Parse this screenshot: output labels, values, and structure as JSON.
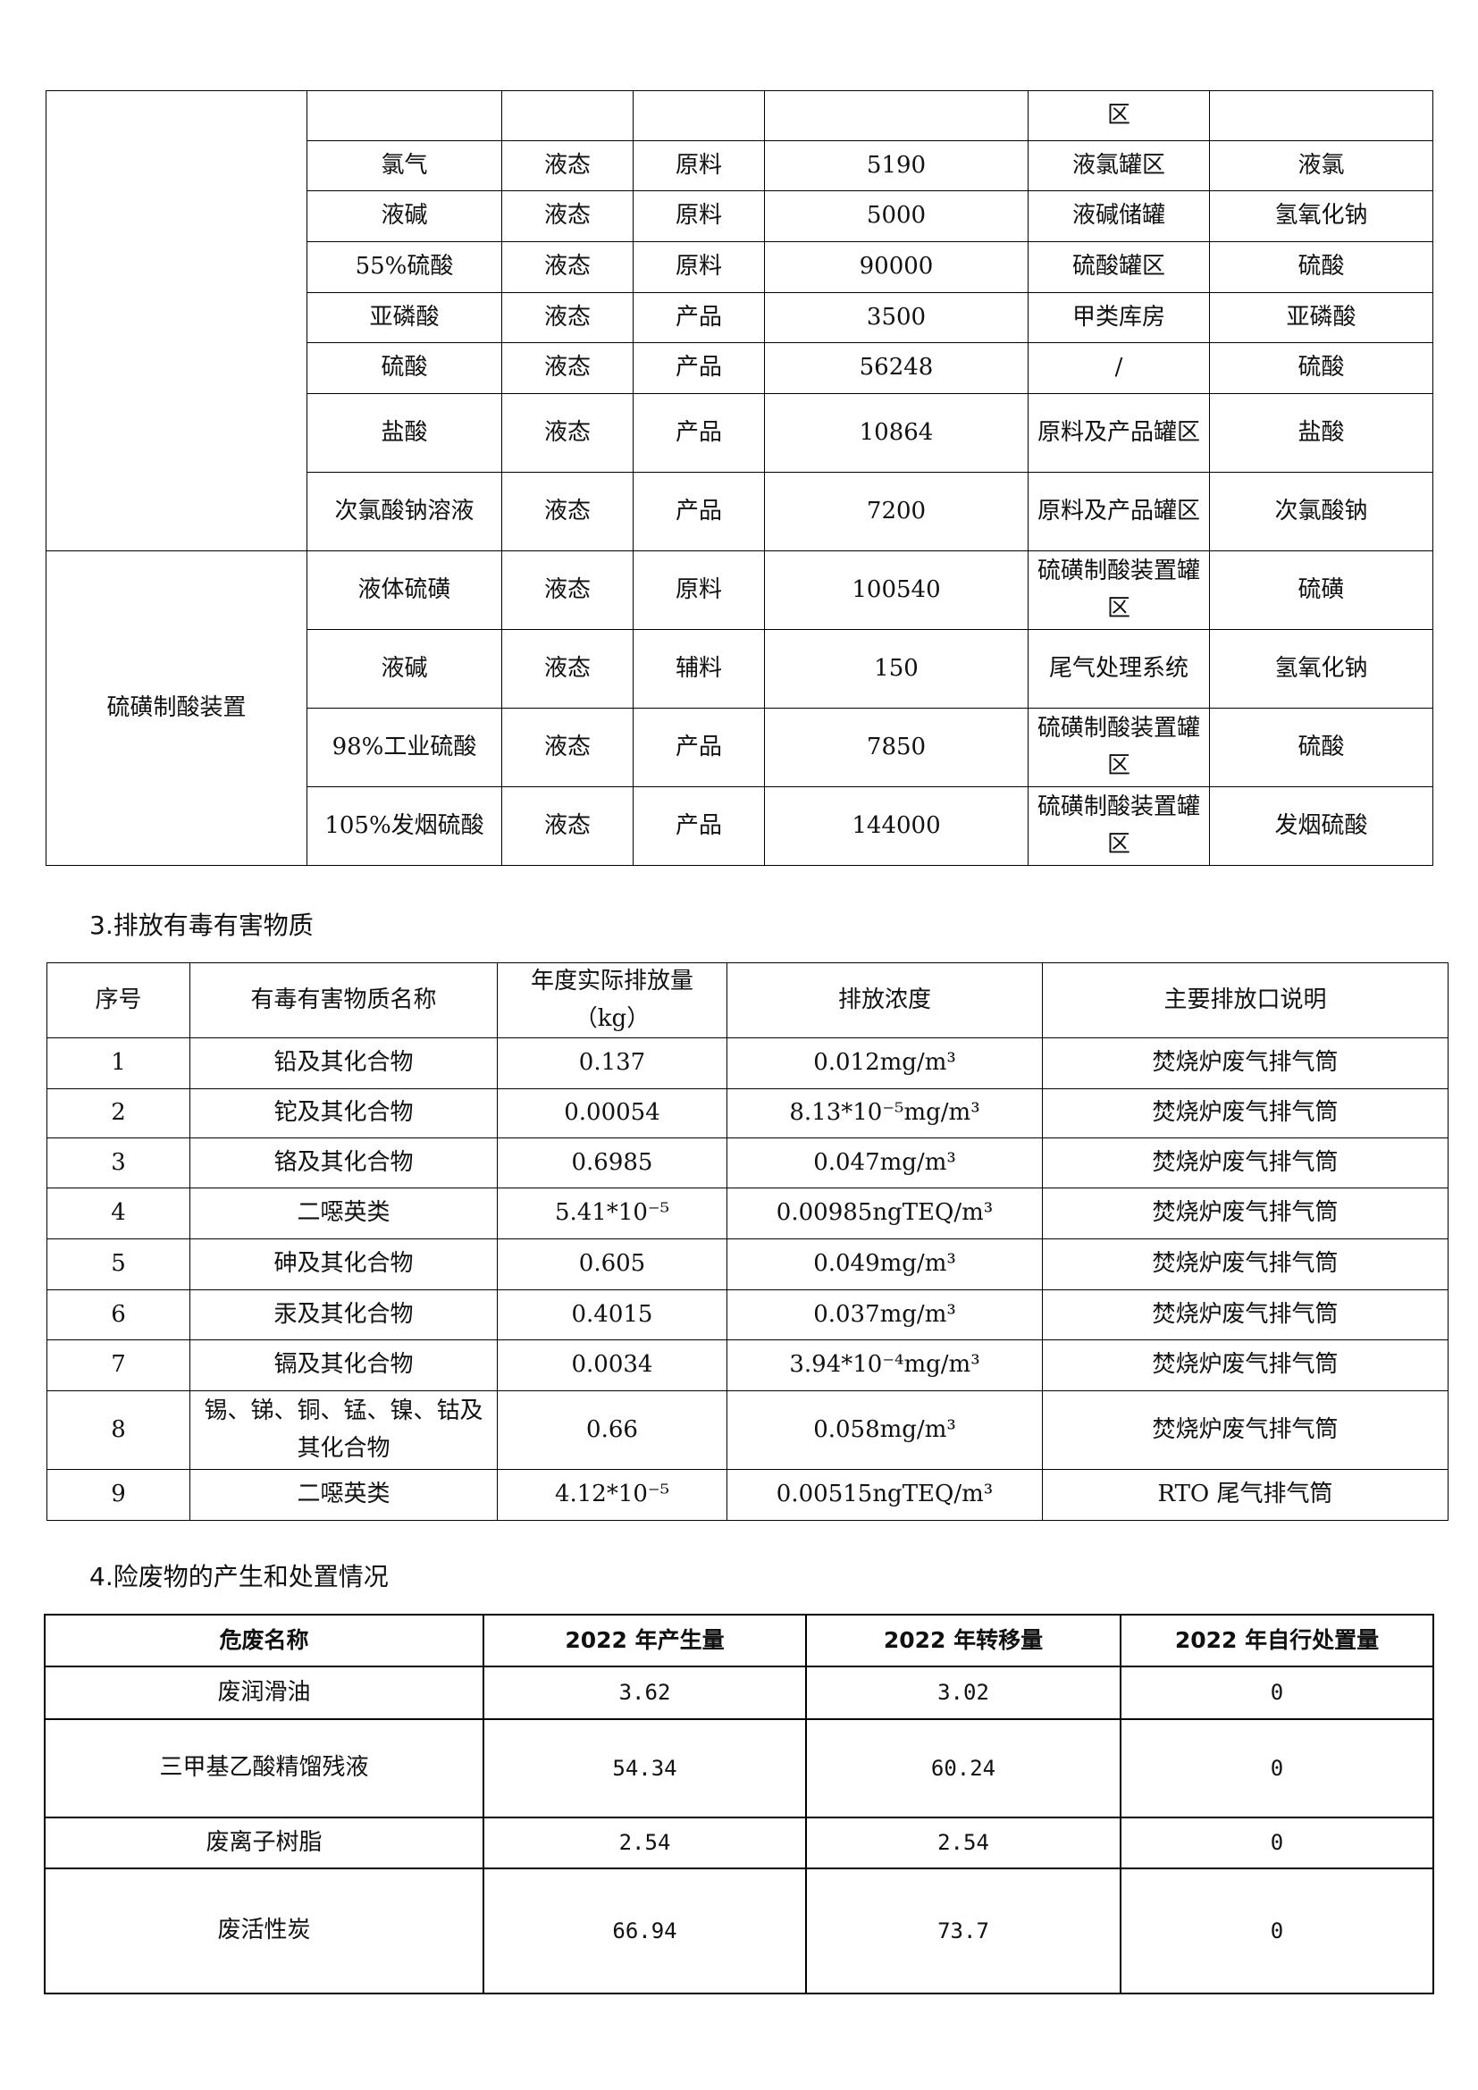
{
  "table1": {
    "groups": [
      {
        "name": "",
        "rows": 8
      },
      {
        "name": "硫磺制酸装置",
        "rows": 4
      }
    ],
    "rows": [
      [
        "",
        "",
        "",
        "",
        "区",
        ""
      ],
      [
        "氯气",
        "液态",
        "原料",
        "5190",
        "液氯罐区",
        "液氯"
      ],
      [
        "液碱",
        "液态",
        "原料",
        "5000",
        "液碱储罐",
        "氢氧化钠"
      ],
      [
        "55%硫酸",
        "液态",
        "原料",
        "90000",
        "硫酸罐区",
        "硫酸"
      ],
      [
        "亚磷酸",
        "液态",
        "产品",
        "3500",
        "甲类库房",
        "亚磷酸"
      ],
      [
        "硫酸",
        "液态",
        "产品",
        "56248",
        "/",
        "硫酸"
      ],
      [
        "盐酸",
        "液态",
        "产品",
        "10864",
        "原料及产品罐区",
        "盐酸"
      ],
      [
        "次氯酸钠溶液",
        "液态",
        "产品",
        "7200",
        "原料及产品罐区",
        "次氯酸钠"
      ],
      [
        "液体硫磺",
        "液态",
        "原料",
        "100540",
        "硫磺制酸装置罐区",
        "硫磺"
      ],
      [
        "液碱",
        "液态",
        "辅料",
        "150",
        "尾气处理系统",
        "氢氧化钠"
      ],
      [
        "98%工业硫酸",
        "液态",
        "产品",
        "7850",
        "硫磺制酸装置罐区",
        "硫酸"
      ],
      [
        "105%发烟硫酸",
        "液态",
        "产品",
        "144000",
        "硫磺制酸装置罐区",
        "发烟硫酸"
      ]
    ]
  },
  "section3": {
    "title": "3.排放有毒有害物质",
    "headers": [
      "序号",
      "有毒有害物质名称",
      "年度实际排放量（kg）",
      "排放浓度",
      "主要排放口说明"
    ],
    "rows": [
      [
        "1",
        "铅及其化合物",
        "0.137",
        "0.012mg/m³",
        "焚烧炉废气排气筒"
      ],
      [
        "2",
        "铊及其化合物",
        "0.00054",
        "8.13*10⁻⁵mg/m³",
        "焚烧炉废气排气筒"
      ],
      [
        "3",
        "铬及其化合物",
        "0.6985",
        "0.047mg/m³",
        "焚烧炉废气排气筒"
      ],
      [
        "4",
        "二噁英类",
        "5.41*10⁻⁵",
        "0.00985ngTEQ/m³",
        "焚烧炉废气排气筒"
      ],
      [
        "5",
        "砷及其化合物",
        "0.605",
        "0.049mg/m³",
        "焚烧炉废气排气筒"
      ],
      [
        "6",
        "汞及其化合物",
        "0.4015",
        "0.037mg/m³",
        "焚烧炉废气排气筒"
      ],
      [
        "7",
        "镉及其化合物",
        "0.0034",
        "3.94*10⁻⁴mg/m³",
        "焚烧炉废气排气筒"
      ],
      [
        "8",
        "锡、锑、铜、锰、镍、钴及其化合物",
        "0.66",
        "0.058mg/m³",
        "焚烧炉废气排气筒"
      ],
      [
        "9",
        "二噁英类",
        "4.12*10⁻⁵",
        "0.00515ngTEQ/m³",
        "RTO 尾气排气筒"
      ]
    ]
  },
  "section4": {
    "title": "4.险废物的产生和处置情况",
    "headers": [
      "危废名称",
      "2022 年产生量",
      "2022 年转移量",
      "2022 年自行处置量"
    ],
    "rows": [
      [
        "废润滑油",
        "3.62",
        "3.02",
        "0"
      ],
      [
        "三甲基乙酸精馏残液",
        "54.34",
        "60.24",
        "0"
      ],
      [
        "废离子树脂",
        "2.54",
        "2.54",
        "0"
      ],
      [
        "废活性炭",
        "66.94",
        "73.7",
        "0"
      ]
    ]
  }
}
